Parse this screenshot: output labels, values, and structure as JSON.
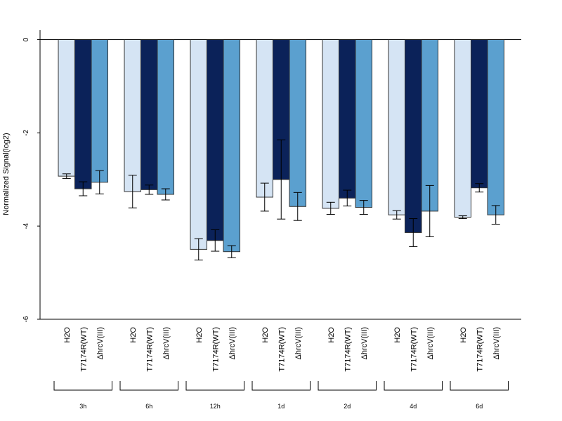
{
  "chart_data": {
    "type": "bar",
    "ylabel": "Normalized Signal(log2)",
    "ylim": [
      -6,
      0.2
    ],
    "yticks": [
      0,
      -2,
      -4,
      -6
    ],
    "series_names": [
      "H2O",
      "T7174R(WT)",
      "ΔhrcV(III)"
    ],
    "colors": [
      "#d5e4f4",
      "#0b2259",
      "#5ba0cf"
    ],
    "groups": [
      {
        "label": "3h",
        "values": [
          -2.93,
          -3.2,
          -3.06
        ],
        "errors": [
          0.05,
          0.15,
          0.25
        ]
      },
      {
        "label": "6h",
        "values": [
          -3.26,
          -3.22,
          -3.32
        ],
        "errors": [
          0.35,
          0.1,
          0.12
        ]
      },
      {
        "label": "12h",
        "values": [
          -4.5,
          -4.31,
          -4.55
        ],
        "errors": [
          0.23,
          0.23,
          0.13
        ]
      },
      {
        "label": "1d",
        "values": [
          -3.38,
          -3.0,
          -3.58
        ],
        "errors": [
          0.3,
          0.85,
          0.3
        ]
      },
      {
        "label": "2d",
        "values": [
          -3.62,
          -3.4,
          -3.6
        ],
        "errors": [
          0.13,
          0.17,
          0.15
        ]
      },
      {
        "label": "4d",
        "values": [
          -3.76,
          -4.14,
          -3.68
        ],
        "errors": [
          0.09,
          0.3,
          0.55
        ]
      },
      {
        "label": "6d",
        "values": [
          -3.81,
          -3.18,
          -3.76
        ],
        "errors": [
          0.03,
          0.09,
          0.2
        ]
      }
    ]
  }
}
